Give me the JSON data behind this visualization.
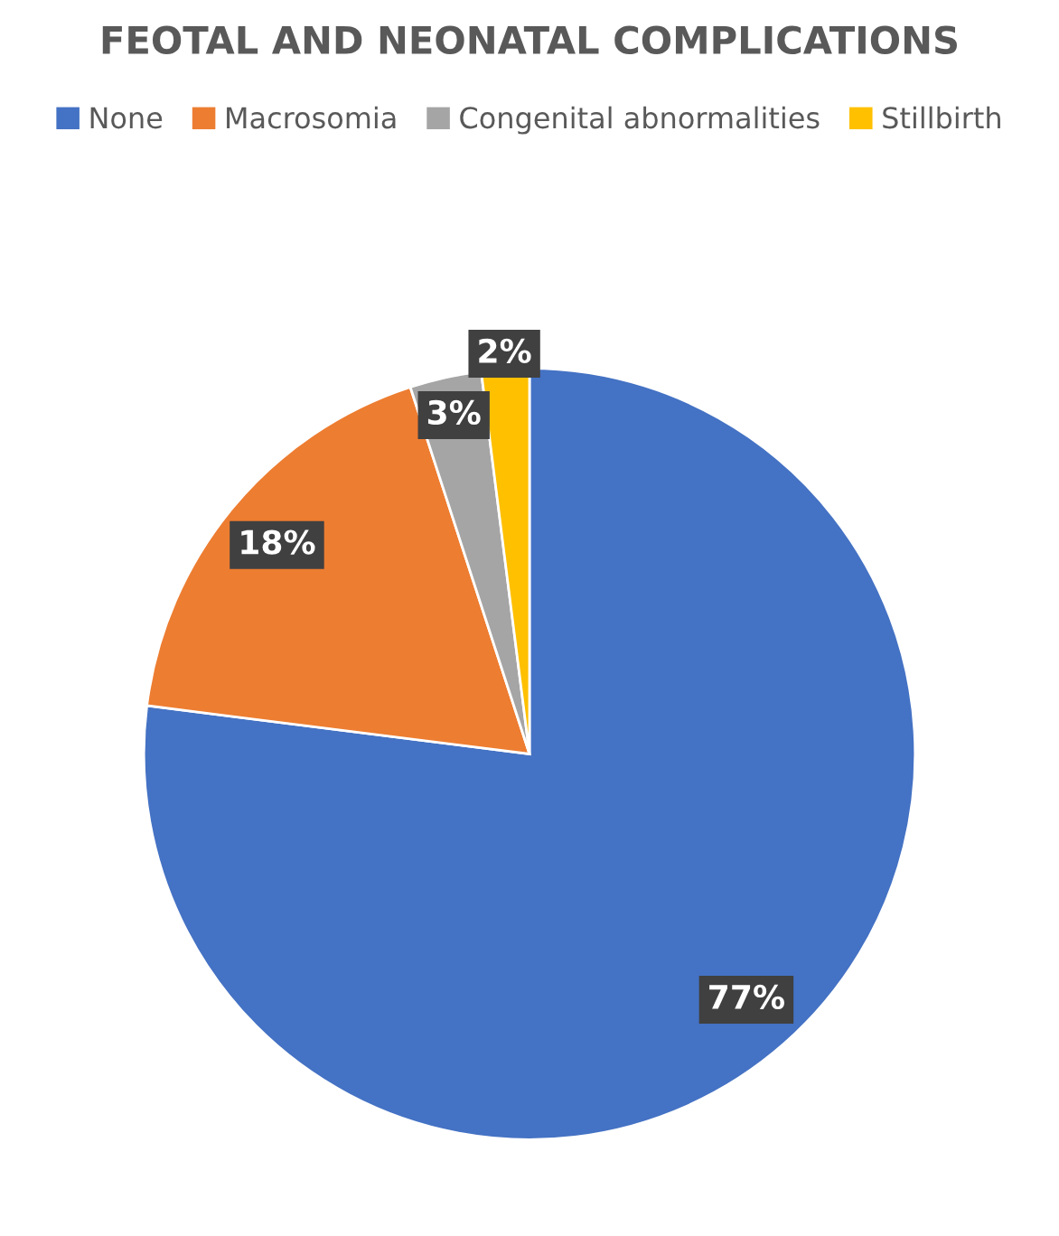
{
  "chart_data": {
    "type": "pie",
    "title": "FEOTAL AND NEONATAL COMPLICATIONS",
    "categories": [
      "None",
      "Macrosomia",
      "Congenital abnormalities",
      "Stillbirth"
    ],
    "values": [
      77,
      18,
      3,
      2
    ],
    "colors": [
      "#4472c4",
      "#ed7d31",
      "#a5a5a5",
      "#ffc000"
    ],
    "value_labels": [
      "77%",
      "18%",
      "3%",
      "2%"
    ],
    "legend": "top"
  }
}
